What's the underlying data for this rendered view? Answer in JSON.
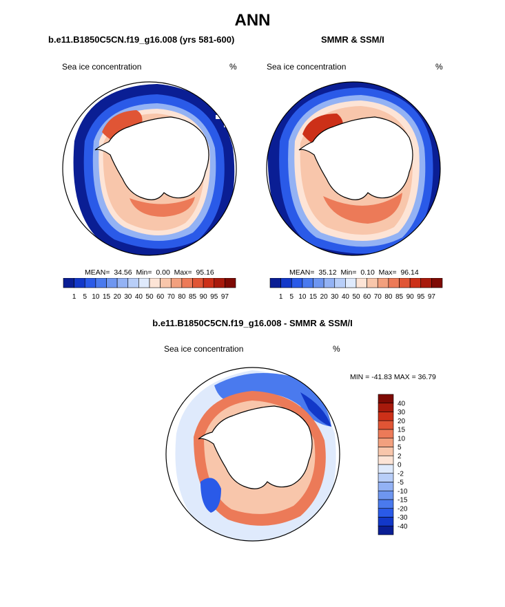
{
  "page_title": "ANN",
  "panels": [
    {
      "title": "b.e11.B1850C5CN.f19_g16.008 (yrs 581-600)",
      "left_label": "Sea ice concentration",
      "right_label": "%",
      "stats": {
        "mean_label": "MEAN=",
        "mean": "34.56",
        "min_label": "Min=",
        "min": "0.00",
        "max_label": "Max=",
        "max": "95.16"
      }
    },
    {
      "title": "SMMR & SSM/I",
      "left_label": "Sea ice concentration",
      "right_label": "%",
      "stats": {
        "mean_label": "MEAN=",
        "mean": "35.12",
        "min_label": "Min=",
        "min": "0.10",
        "max_label": "Max=",
        "max": "96.14"
      }
    }
  ],
  "diff_panel": {
    "title": "b.e11.B1850C5CN.f19_g16.008 - SMMR & SSM/I",
    "left_label": "Sea ice concentration",
    "right_label": "%",
    "minmax": "MIN = -41.83 MAX =  36.79"
  },
  "chart_data": [
    {
      "type": "map",
      "projection": "polar-stereographic-south",
      "variable": "Sea ice concentration",
      "units": "%",
      "colorbar": {
        "orientation": "horizontal",
        "levels": [
          "1",
          "5",
          "10",
          "15",
          "20",
          "30",
          "40",
          "50",
          "60",
          "70",
          "80",
          "85",
          "90",
          "95",
          "97"
        ],
        "colors": [
          "#0a1e94",
          "#1238c8",
          "#2a5ae8",
          "#4a7aee",
          "#6e96f0",
          "#93b2f4",
          "#b8cef8",
          "#dfeafc",
          "#fde4d6",
          "#f8c6ab",
          "#f2a07e",
          "#ec7a58",
          "#e05535",
          "#cc3018",
          "#a81a0c",
          "#7e0a04"
        ]
      },
      "stats": {
        "mean": 34.56,
        "min": 0.0,
        "max": 95.16
      }
    },
    {
      "type": "map",
      "projection": "polar-stereographic-south",
      "variable": "Sea ice concentration",
      "units": "%",
      "stats": {
        "mean": 35.12,
        "min": 0.1,
        "max": 96.14
      }
    },
    {
      "type": "map",
      "projection": "polar-stereographic-south",
      "variable": "Sea ice concentration difference",
      "units": "%",
      "colorbar": {
        "orientation": "vertical",
        "levels": [
          "40",
          "30",
          "20",
          "15",
          "10",
          "5",
          "2",
          "0",
          "-2",
          "-5",
          "-10",
          "-15",
          "-20",
          "-30",
          "-40"
        ],
        "colors": [
          "#7e0a04",
          "#a81a0c",
          "#cc3018",
          "#e05535",
          "#ec7a58",
          "#f2a07e",
          "#f8c6ab",
          "#fde4d6",
          "#dfeafc",
          "#b8cef8",
          "#93b2f4",
          "#6e96f0",
          "#4a7aee",
          "#2a5ae8",
          "#1238c8",
          "#0a1e94"
        ]
      },
      "stats": {
        "min": -41.83,
        "max": 36.79
      }
    }
  ]
}
